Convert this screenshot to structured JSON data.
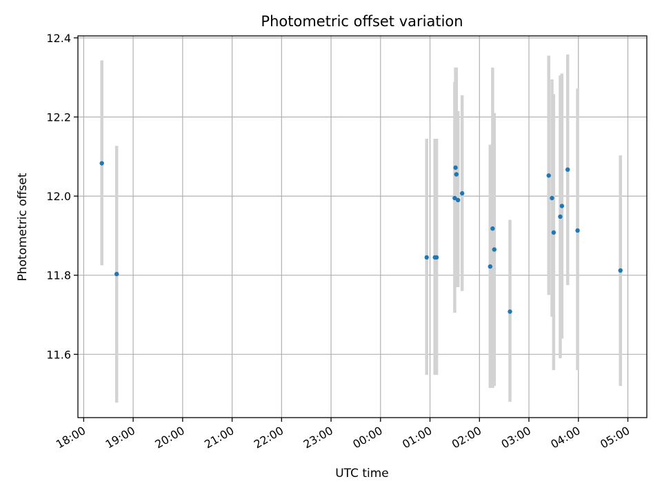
{
  "chart_data": {
    "type": "scatter",
    "title": "Photometric offset variation",
    "xlabel": "UTC time",
    "ylabel": "Photometric offset",
    "x_ticks": [
      "18:00",
      "19:00",
      "20:00",
      "21:00",
      "22:00",
      "23:00",
      "00:00",
      "01:00",
      "02:00",
      "03:00",
      "04:00",
      "05:00"
    ],
    "y_ticks": [
      "11.6",
      "11.8",
      "12.0",
      "12.2",
      "12.4"
    ],
    "ylim": [
      11.44,
      12.405
    ],
    "xlim": [
      "17:53",
      "05:23"
    ],
    "grid": true,
    "series": [
      {
        "marker_color": "#1f77b4",
        "errorbar_color": "#d3d3d3",
        "points": [
          {
            "x": "18:22",
            "y": 12.083,
            "ylow": 11.825,
            "yhigh": 12.343
          },
          {
            "x": "18:40",
            "y": 11.803,
            "ylow": 11.478,
            "yhigh": 12.127
          },
          {
            "x": "00:56",
            "y": 11.845,
            "ylow": 11.548,
            "yhigh": 12.145
          },
          {
            "x": "01:06",
            "y": 11.845,
            "ylow": 11.548,
            "yhigh": 12.145
          },
          {
            "x": "01:08",
            "y": 11.845,
            "ylow": 11.548,
            "yhigh": 12.145
          },
          {
            "x": "01:30",
            "y": 11.995,
            "ylow": 11.705,
            "yhigh": 12.288
          },
          {
            "x": "01:31",
            "y": 12.072,
            "ylow": 11.77,
            "yhigh": 12.325
          },
          {
            "x": "01:32",
            "y": 12.055,
            "ylow": 11.8,
            "yhigh": 12.325
          },
          {
            "x": "01:34",
            "y": 11.99,
            "ylow": 11.77,
            "yhigh": 12.215
          },
          {
            "x": "01:39",
            "y": 12.007,
            "ylow": 11.76,
            "yhigh": 12.255
          },
          {
            "x": "02:13",
            "y": 11.822,
            "ylow": 11.515,
            "yhigh": 12.13
          },
          {
            "x": "02:16",
            "y": 11.918,
            "ylow": 11.515,
            "yhigh": 12.325
          },
          {
            "x": "02:18",
            "y": 11.865,
            "ylow": 11.52,
            "yhigh": 12.21
          },
          {
            "x": "02:37",
            "y": 11.708,
            "ylow": 11.48,
            "yhigh": 11.94
          },
          {
            "x": "03:24",
            "y": 12.052,
            "ylow": 11.75,
            "yhigh": 12.355
          },
          {
            "x": "03:28",
            "y": 11.995,
            "ylow": 11.695,
            "yhigh": 12.295
          },
          {
            "x": "03:30",
            "y": 11.908,
            "ylow": 11.56,
            "yhigh": 12.258
          },
          {
            "x": "03:38",
            "y": 11.948,
            "ylow": 11.59,
            "yhigh": 12.305
          },
          {
            "x": "03:40",
            "y": 11.975,
            "ylow": 11.64,
            "yhigh": 12.31
          },
          {
            "x": "03:47",
            "y": 12.067,
            "ylow": 11.775,
            "yhigh": 12.358
          },
          {
            "x": "03:59",
            "y": 11.913,
            "ylow": 11.56,
            "yhigh": 12.272
          },
          {
            "x": "04:51",
            "y": 11.812,
            "ylow": 11.52,
            "yhigh": 12.103
          }
        ]
      }
    ]
  }
}
